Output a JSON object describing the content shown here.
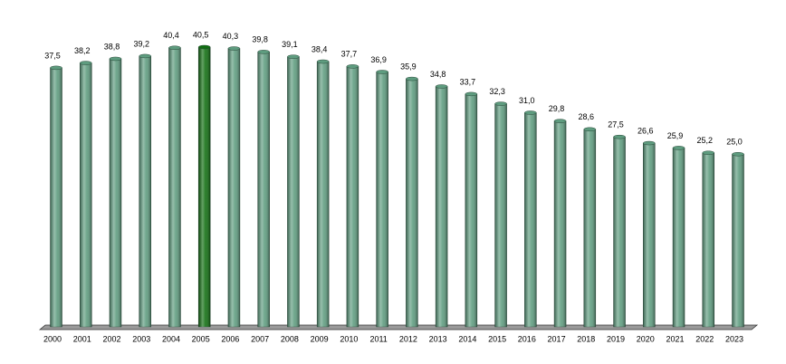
{
  "chart_data": {
    "type": "bar",
    "categories": [
      "2000",
      "2001",
      "2002",
      "2003",
      "2004",
      "2005",
      "2006",
      "2007",
      "2008",
      "2009",
      "2010",
      "2011",
      "2012",
      "2013",
      "2014",
      "2015",
      "2016",
      "2017",
      "2018",
      "2019",
      "2020",
      "2021",
      "2022",
      "2023"
    ],
    "values": [
      37.5,
      38.2,
      38.8,
      39.2,
      40.4,
      40.5,
      40.3,
      39.8,
      39.1,
      38.4,
      37.7,
      36.9,
      35.9,
      34.8,
      33.7,
      32.3,
      31.0,
      29.8,
      28.6,
      27.5,
      26.6,
      25.9,
      25.2,
      25.0
    ],
    "value_labels": [
      "37,5",
      "38,2",
      "38,8",
      "39,2",
      "40,4",
      "40,5",
      "40,3",
      "39,8",
      "39,1",
      "38,4",
      "37,7",
      "36,9",
      "35,9",
      "34,8",
      "33,7",
      "32,3",
      "31,0",
      "29,8",
      "28,6",
      "27,5",
      "26,6",
      "25,9",
      "25,2",
      "25,0"
    ],
    "colors": [
      "#5e9c7f",
      "#5e9c7f",
      "#5e9c7f",
      "#5e9c7f",
      "#5e9c7f",
      "#106e10",
      "#5e9c7f",
      "#5e9c7f",
      "#5e9c7f",
      "#5e9c7f",
      "#5e9c7f",
      "#5e9c7f",
      "#5e9c7f",
      "#5e9c7f",
      "#5e9c7f",
      "#5e9c7f",
      "#5e9c7f",
      "#5e9c7f",
      "#5e9c7f",
      "#5e9c7f",
      "#5e9c7f",
      "#5e9c7f",
      "#5e9c7f",
      "#5e9c7f"
    ]
  }
}
